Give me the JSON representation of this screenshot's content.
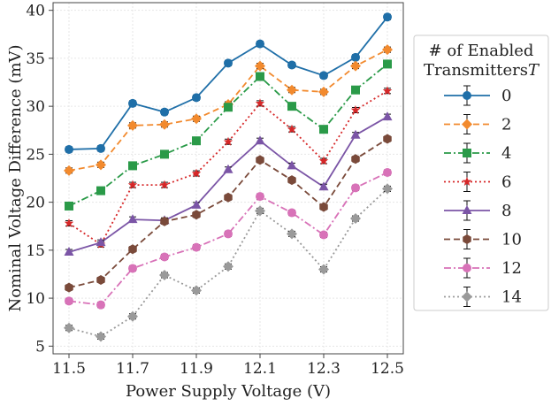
{
  "chart_data": {
    "type": "line",
    "xlabel": "Power Supply Voltage (V)",
    "ylabel": "Nominal Voltage Difference (mV)",
    "xlim": [
      11.45,
      12.55
    ],
    "ylim": [
      4.2,
      40.8
    ],
    "xticks": [
      11.5,
      11.7,
      11.9,
      12.1,
      12.3,
      12.5
    ],
    "xtick_labels": [
      "11.5",
      "11.7",
      "11.9",
      "12.1",
      "12.3",
      "12.5"
    ],
    "yticks": [
      5,
      10,
      15,
      20,
      25,
      30,
      35,
      40
    ],
    "ytick_labels": [
      "5",
      "10",
      "15",
      "20",
      "25",
      "30",
      "35",
      "40"
    ],
    "grid": true,
    "legend_title_line1": "# of Enabled",
    "legend_title_line2": "Transmitters",
    "legend_title_var": "T",
    "legend_position": "right-outside",
    "x": [
      11.5,
      11.6,
      11.7,
      11.8,
      11.9,
      12.0,
      12.1,
      12.2,
      12.3,
      12.4,
      12.5
    ],
    "series": [
      {
        "name": "0",
        "color": "#1f6fa8",
        "dash": "solid",
        "marker": "circle",
        "values": [
          25.5,
          25.6,
          30.3,
          29.4,
          30.9,
          34.5,
          36.5,
          34.3,
          33.2,
          35.1,
          39.3
        ]
      },
      {
        "name": "2",
        "color": "#f28a2e",
        "dash": "dashed",
        "marker": "diamond",
        "values": [
          23.3,
          23.9,
          28.0,
          28.1,
          28.7,
          30.2,
          34.2,
          31.7,
          31.5,
          34.2,
          35.9
        ]
      },
      {
        "name": "4",
        "color": "#2a9a48",
        "dash": "dashdot",
        "marker": "square",
        "values": [
          19.6,
          21.2,
          23.8,
          25.0,
          26.4,
          29.9,
          33.1,
          30.0,
          27.6,
          31.7,
          34.4
        ]
      },
      {
        "name": "6",
        "color": "#d62728",
        "dash": "dotted",
        "marker": "star",
        "values": [
          17.8,
          15.6,
          21.8,
          21.8,
          23.0,
          26.3,
          30.3,
          27.6,
          24.3,
          29.6,
          31.6
        ]
      },
      {
        "name": "8",
        "color": "#7b55a6",
        "dash": "solid",
        "marker": "triangle",
        "values": [
          14.8,
          15.8,
          18.2,
          18.1,
          19.7,
          23.4,
          26.4,
          23.8,
          21.6,
          27.0,
          28.9
        ]
      },
      {
        "name": "10",
        "color": "#7a4a3a",
        "dash": "dashed",
        "marker": "hexagon",
        "values": [
          11.1,
          11.9,
          15.1,
          18.0,
          18.7,
          20.5,
          24.4,
          22.3,
          19.5,
          24.5,
          26.6
        ]
      },
      {
        "name": "12",
        "color": "#d872b8",
        "dash": "dashdot",
        "marker": "circle",
        "values": [
          9.7,
          9.3,
          13.1,
          14.3,
          15.3,
          16.7,
          20.6,
          18.9,
          16.6,
          21.5,
          23.1
        ]
      },
      {
        "name": "14",
        "color": "#9a9a9a",
        "dash": "dotted",
        "marker": "diamond",
        "values": [
          6.9,
          6.0,
          8.1,
          12.4,
          10.8,
          13.3,
          19.1,
          16.7,
          13.0,
          18.3,
          21.4
        ]
      }
    ]
  }
}
